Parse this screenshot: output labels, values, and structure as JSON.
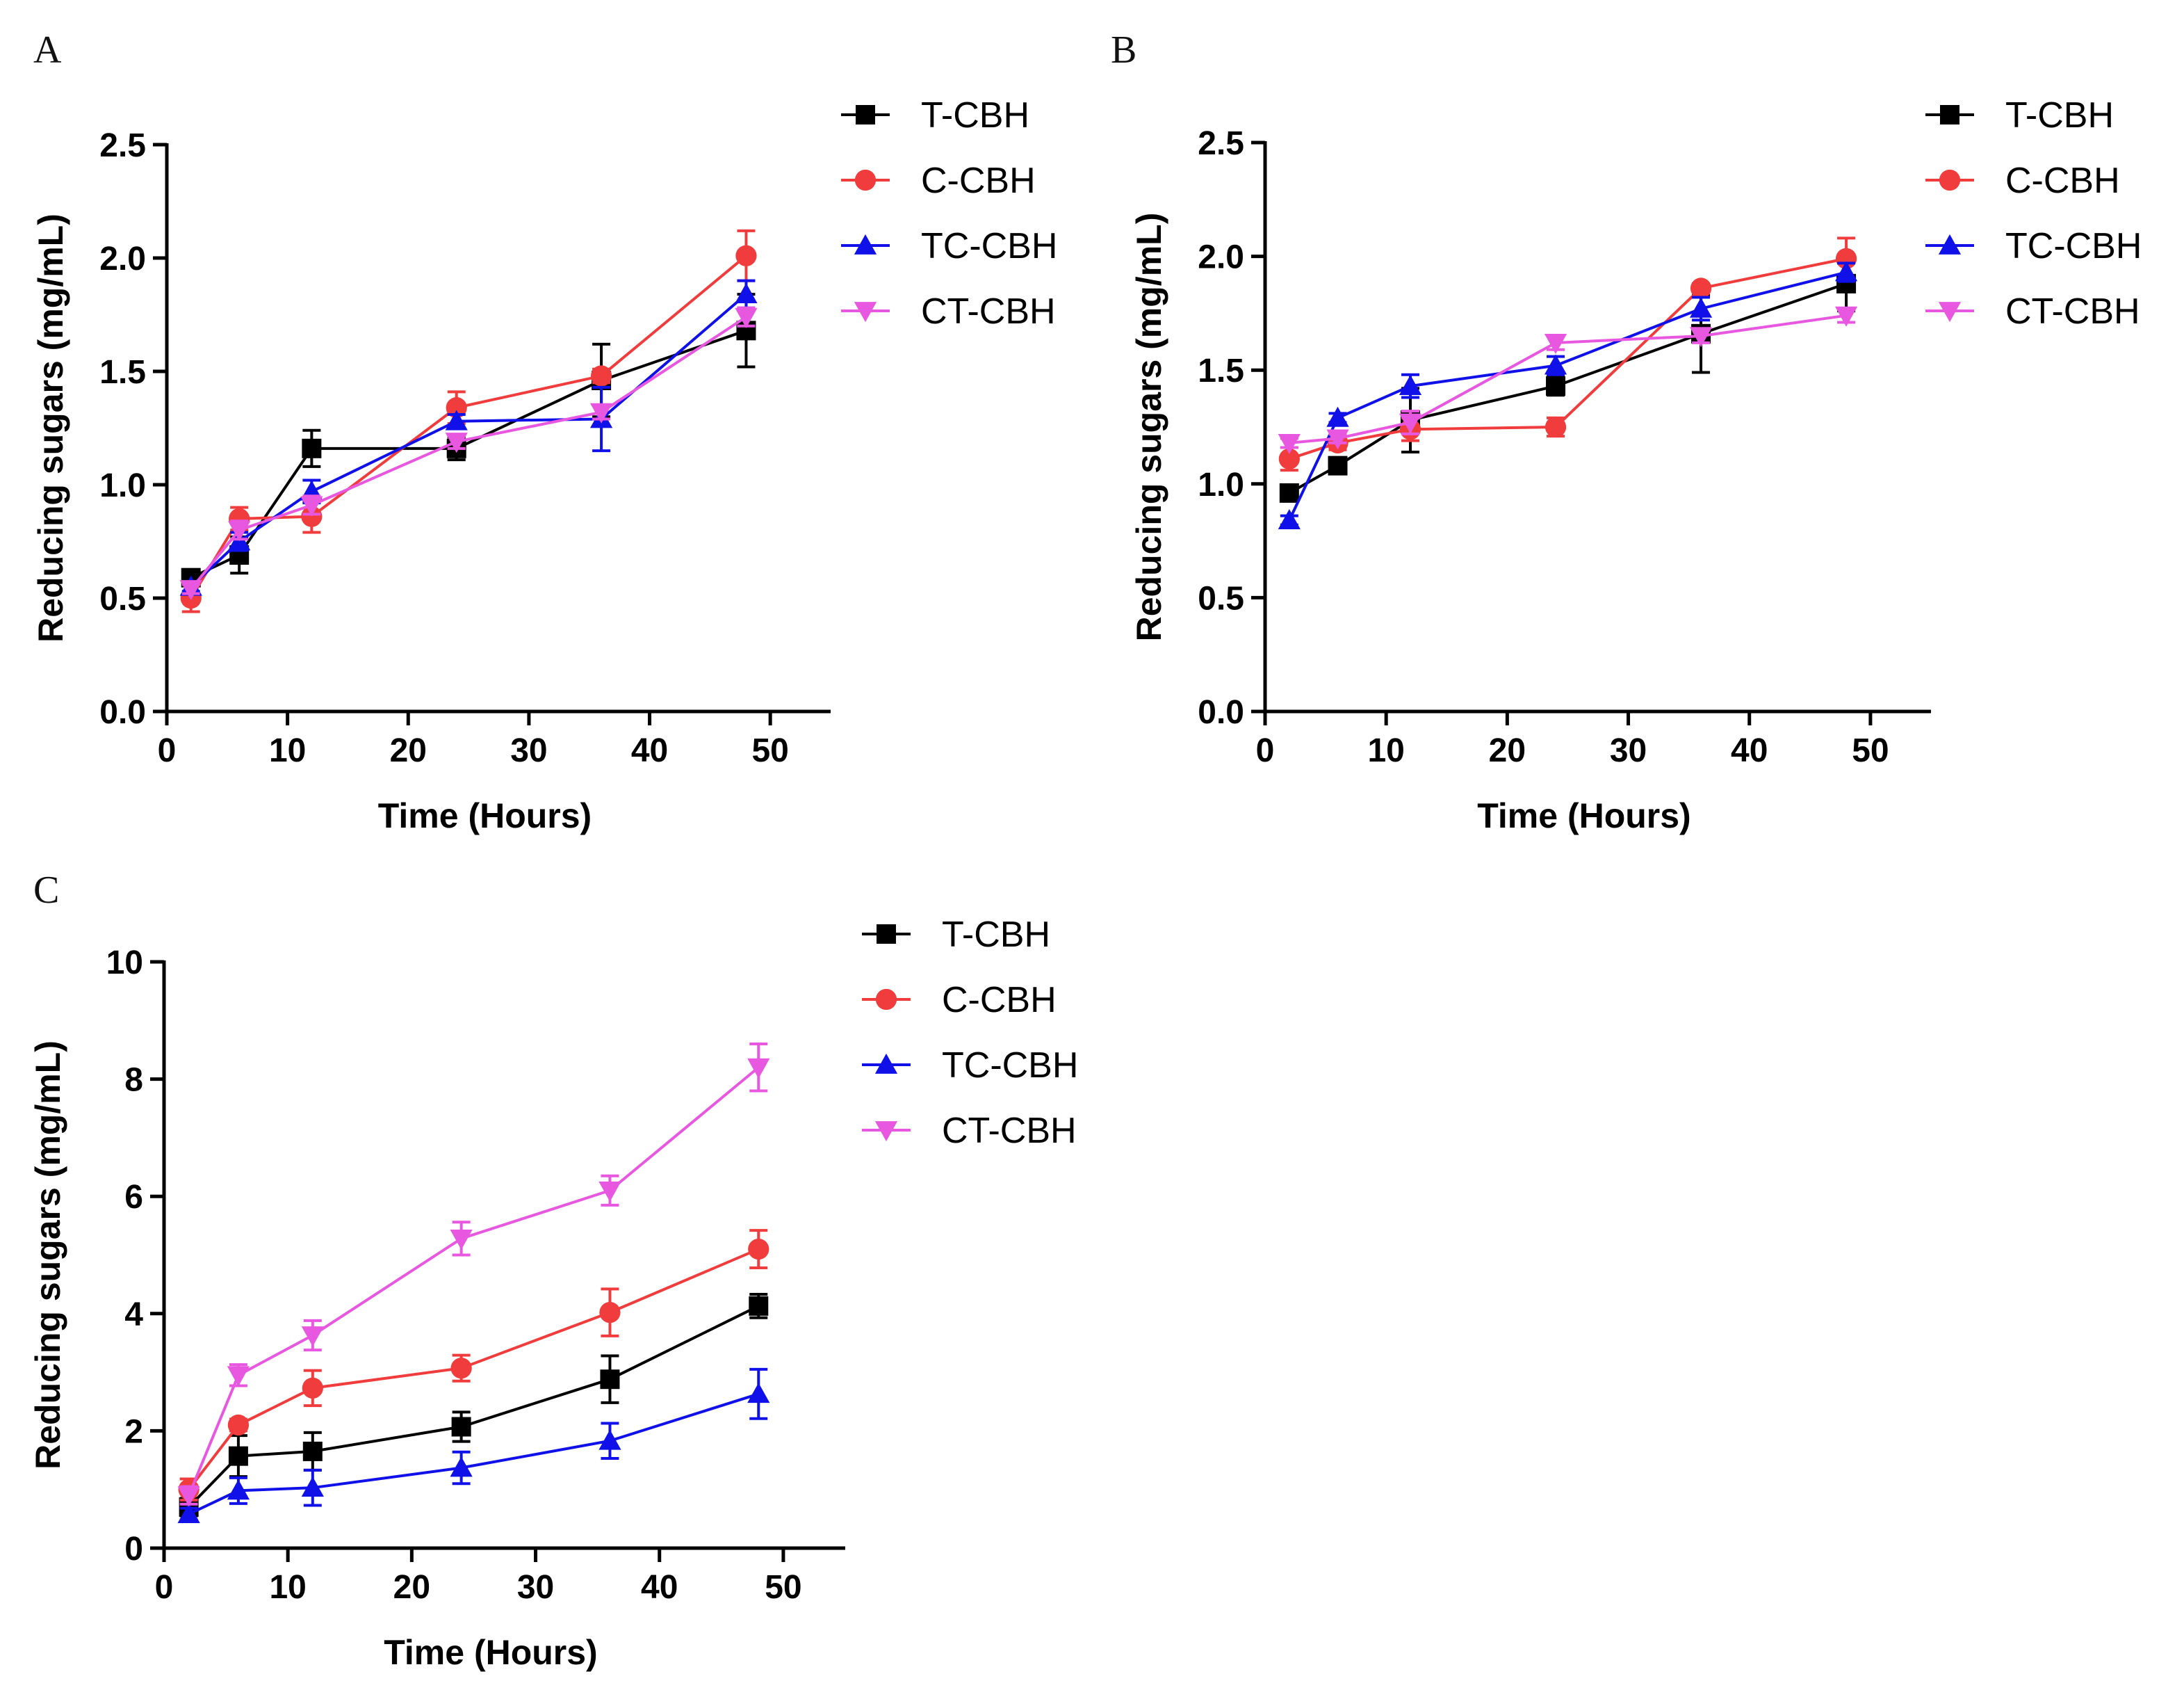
{
  "series_styles": [
    {
      "name": "T-CBH",
      "color": "#000000",
      "marker": "square"
    },
    {
      "name": "C-CBH",
      "color": "#f03c3c",
      "marker": "circle"
    },
    {
      "name": "TC-CBH",
      "color": "#1010e8",
      "marker": "triangle-up"
    },
    {
      "name": "CT-CBH",
      "color": "#e857e0",
      "marker": "triangle-down"
    }
  ],
  "chart_data": [
    {
      "panel": "A",
      "type": "line",
      "xlabel": "Time (Hours)",
      "ylabel": "Reducing sugars (mg/mL)",
      "xlim": [
        0,
        55
      ],
      "ylim": [
        0,
        2.5
      ],
      "xticks": [
        "0",
        "10",
        "20",
        "30",
        "40",
        "50"
      ],
      "yticks": [
        "0.0",
        "0.5",
        "1.0",
        "1.5",
        "2.0",
        "2.5"
      ],
      "x": [
        2,
        6,
        12,
        24,
        36,
        48
      ],
      "series": [
        {
          "name": "T-CBH",
          "values": [
            0.59,
            0.69,
            1.16,
            1.16,
            1.46,
            1.68
          ],
          "errors": [
            0.03,
            0.08,
            0.08,
            0.05,
            0.16,
            0.16
          ]
        },
        {
          "name": "C-CBH",
          "values": [
            0.5,
            0.85,
            0.86,
            1.34,
            1.48,
            2.01
          ],
          "errors": [
            0.06,
            0.05,
            0.07,
            0.07,
            0.03,
            0.11
          ]
        },
        {
          "name": "TC-CBH",
          "values": [
            0.55,
            0.75,
            0.97,
            1.28,
            1.29,
            1.84
          ],
          "errors": [
            0.02,
            0.04,
            0.05,
            0.03,
            0.14,
            0.06
          ]
        },
        {
          "name": "CT-CBH",
          "values": [
            0.54,
            0.8,
            0.91,
            1.19,
            1.32,
            1.74
          ],
          "errors": [
            0.02,
            0.04,
            0.04,
            0.03,
            0.03,
            0.04
          ]
        }
      ],
      "legend": "top-right"
    },
    {
      "panel": "B",
      "type": "line",
      "xlabel": "Time (Hours)",
      "ylabel": "Reducing sugars (mg/mL)",
      "xlim": [
        0,
        55
      ],
      "ylim": [
        0,
        2.5
      ],
      "xticks": [
        "0",
        "10",
        "20",
        "30",
        "40",
        "50"
      ],
      "yticks": [
        "0.0",
        "0.5",
        "1.0",
        "1.5",
        "2.0",
        "2.5"
      ],
      "x": [
        2,
        6,
        12,
        24,
        36,
        48
      ],
      "series": [
        {
          "name": "T-CBH",
          "values": [
            0.96,
            1.08,
            1.28,
            1.43,
            1.66,
            1.88
          ],
          "errors": [
            0.03,
            0.03,
            0.14,
            0.04,
            0.17,
            0.12
          ]
        },
        {
          "name": "C-CBH",
          "values": [
            1.11,
            1.18,
            1.24,
            1.25,
            1.86,
            1.99
          ],
          "errors": [
            0.05,
            0.03,
            0.05,
            0.04,
            0.02,
            0.09
          ]
        },
        {
          "name": "TC-CBH",
          "values": [
            0.84,
            1.29,
            1.43,
            1.52,
            1.77,
            1.93
          ],
          "errors": [
            0.02,
            0.02,
            0.05,
            0.04,
            0.05,
            0.04
          ]
        },
        {
          "name": "CT-CBH",
          "values": [
            1.18,
            1.2,
            1.27,
            1.62,
            1.65,
            1.74
          ],
          "errors": [
            0.02,
            0.02,
            0.05,
            0.03,
            0.03,
            0.03
          ]
        }
      ],
      "legend": "top-right"
    },
    {
      "panel": "C",
      "type": "line",
      "xlabel": "Time (Hours)",
      "ylabel": "Reducing sugars (mg/mL)",
      "xlim": [
        0,
        55
      ],
      "ylim": [
        0,
        10
      ],
      "xticks": [
        "0",
        "10",
        "20",
        "30",
        "40",
        "50"
      ],
      "yticks": [
        "0",
        "2",
        "4",
        "6",
        "8",
        "10"
      ],
      "x": [
        2,
        6,
        12,
        24,
        36,
        48
      ],
      "series": [
        {
          "name": "T-CBH",
          "values": [
            0.7,
            1.57,
            1.65,
            2.07,
            2.88,
            4.13
          ],
          "errors": [
            0.15,
            0.35,
            0.32,
            0.25,
            0.4,
            0.2
          ]
        },
        {
          "name": "C-CBH",
          "values": [
            1.0,
            2.1,
            2.73,
            3.07,
            4.02,
            5.1
          ],
          "errors": [
            0.18,
            0.1,
            0.3,
            0.22,
            0.4,
            0.32
          ]
        },
        {
          "name": "TC-CBH",
          "values": [
            0.58,
            0.98,
            1.03,
            1.37,
            1.83,
            2.63
          ],
          "errors": [
            0.1,
            0.22,
            0.3,
            0.27,
            0.3,
            0.42
          ]
        },
        {
          "name": "CT-CBH",
          "values": [
            0.9,
            2.95,
            3.63,
            5.28,
            6.1,
            8.2
          ],
          "errors": [
            0.15,
            0.18,
            0.25,
            0.28,
            0.25,
            0.4
          ]
        }
      ],
      "legend": "top-right"
    }
  ]
}
